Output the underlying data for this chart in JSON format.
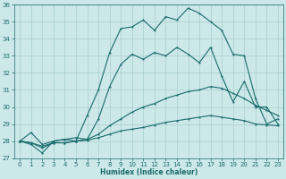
{
  "xlabel": "Humidex (Indice chaleur)",
  "background_color": "#cce8e8",
  "grid_color": "#aacfcf",
  "line_color": "#1a6b6b",
  "xlim": [
    -0.5,
    23.5
  ],
  "ylim": [
    27,
    36
  ],
  "yticks": [
    27,
    28,
    29,
    30,
    31,
    32,
    33,
    34,
    35,
    36
  ],
  "xticks": [
    0,
    1,
    2,
    3,
    4,
    5,
    6,
    7,
    8,
    9,
    10,
    11,
    12,
    13,
    14,
    15,
    16,
    17,
    18,
    19,
    20,
    21,
    22,
    23
  ],
  "line1": [
    28.0,
    28.5,
    27.8,
    28.0,
    28.1,
    28.0,
    29.5,
    31.0,
    33.2,
    34.6,
    34.7,
    35.1,
    34.5,
    35.3,
    35.1,
    35.8,
    35.5,
    35.0,
    34.5,
    33.1,
    33.0,
    30.5,
    29.0,
    29.3
  ],
  "line2": [
    28.0,
    27.8,
    27.3,
    28.0,
    28.1,
    28.2,
    28.1,
    29.3,
    31.2,
    32.5,
    33.1,
    32.8,
    33.2,
    33.0,
    33.5,
    33.1,
    32.6,
    33.5,
    31.8,
    30.3,
    31.5,
    30.0,
    30.0,
    29.0
  ],
  "line3": [
    28.0,
    27.9,
    27.6,
    27.9,
    27.9,
    28.0,
    28.1,
    28.4,
    28.9,
    29.3,
    29.7,
    30.0,
    30.2,
    30.5,
    30.7,
    30.9,
    31.0,
    31.2,
    31.1,
    30.8,
    30.5,
    30.1,
    29.8,
    29.5
  ],
  "line4": [
    28.0,
    27.9,
    27.7,
    27.9,
    27.9,
    28.0,
    28.05,
    28.2,
    28.4,
    28.6,
    28.7,
    28.8,
    28.95,
    29.1,
    29.2,
    29.3,
    29.4,
    29.5,
    29.4,
    29.3,
    29.2,
    29.0,
    28.95,
    28.9
  ]
}
